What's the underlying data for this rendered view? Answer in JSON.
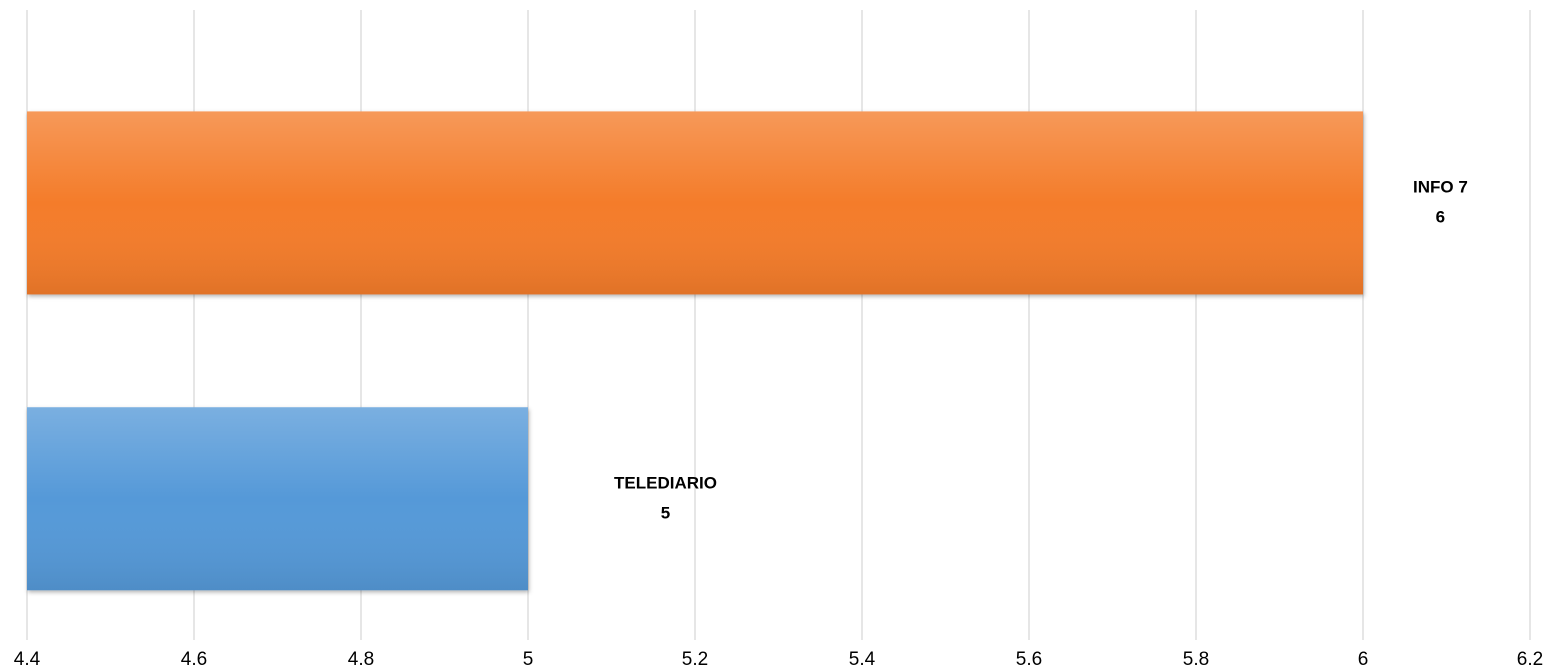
{
  "chart_data": {
    "type": "bar",
    "orientation": "horizontal",
    "categories": [
      "INFO 7",
      "TELEDIARIO"
    ],
    "values": [
      6,
      5
    ],
    "colors": [
      "#f47b2a",
      "#5599d8"
    ],
    "xlim": [
      4.4,
      6.2
    ],
    "xticks": [
      4.4,
      4.6,
      4.8,
      5,
      5.2,
      5.4,
      5.6,
      5.8,
      6,
      6.2
    ],
    "grid": true
  }
}
